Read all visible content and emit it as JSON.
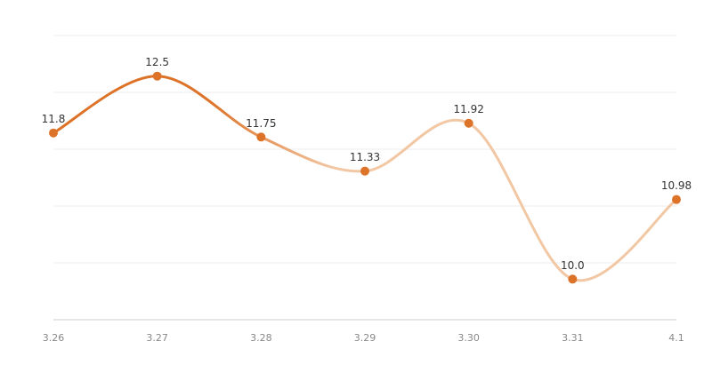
{
  "chart_data": {
    "type": "line",
    "categories": [
      "3.26",
      "3.27",
      "3.28",
      "3.29",
      "3.30",
      "3.31",
      "4.1"
    ],
    "values": [
      11.8,
      12.5,
      11.75,
      11.33,
      11.92,
      10.0,
      10.98
    ],
    "value_labels": [
      "11.8",
      "12.5",
      "11.75",
      "11.33",
      "11.92",
      "10.0",
      "10.98"
    ],
    "color": "#dd7329",
    "fade_color": "#f2c7a3",
    "ylim": [
      9.5,
      13.0
    ],
    "yticks": [
      9.5,
      10.2,
      10.9,
      11.6,
      12.3,
      13.0
    ],
    "grid": true
  }
}
